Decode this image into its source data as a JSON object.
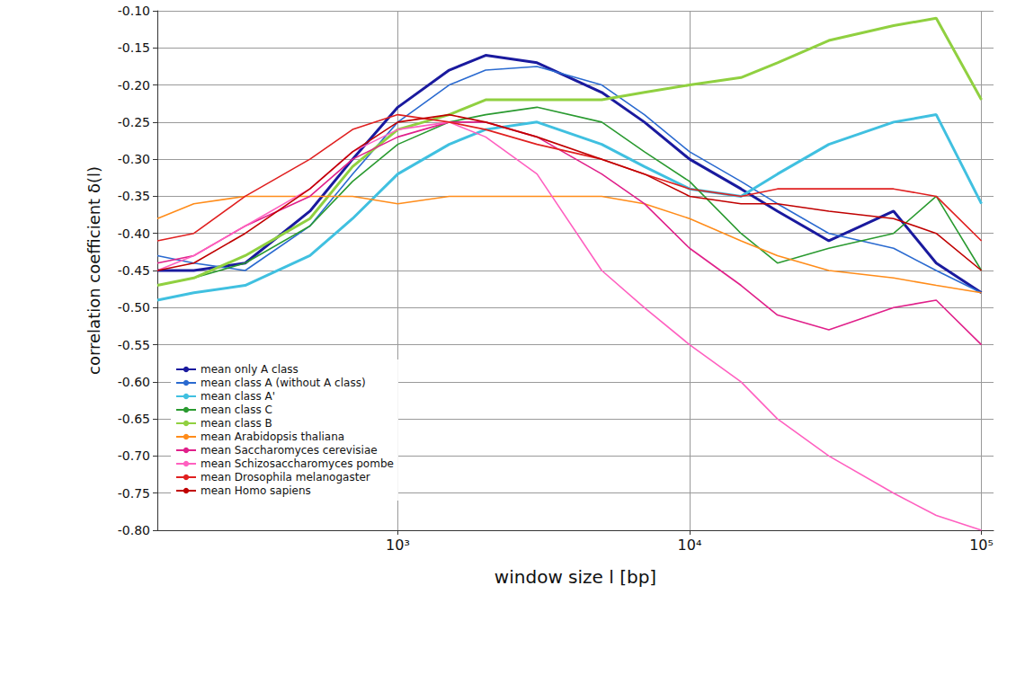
{
  "chart_data": {
    "type": "line",
    "x_label": "window size l [bp]",
    "y_label": "correlation coefficient δ(l)",
    "log": "x",
    "grid": true,
    "legend": "lower left",
    "xlim": [
      150,
      110000
    ],
    "xticks": [
      {
        "value": 1000,
        "label": "10³"
      },
      {
        "value": 10000,
        "label": "10⁴"
      },
      {
        "value": 100000,
        "label": "10⁵"
      }
    ],
    "ylim": [
      -0.8,
      -0.1
    ],
    "yticks": [
      {
        "value": -0.8,
        "label": "-0.80"
      },
      {
        "value": -0.75,
        "label": "-0.75"
      },
      {
        "value": -0.7,
        "label": "-0.70"
      },
      {
        "value": -0.65,
        "label": "-0.65"
      },
      {
        "value": -0.6,
        "label": "-0.60"
      },
      {
        "value": -0.55,
        "label": "-0.55"
      },
      {
        "value": -0.5,
        "label": "-0.50"
      },
      {
        "value": -0.45,
        "label": "-0.45"
      },
      {
        "value": -0.4,
        "label": "-0.40"
      },
      {
        "value": -0.35,
        "label": "-0.35"
      },
      {
        "value": -0.3,
        "label": "-0.30"
      },
      {
        "value": -0.25,
        "label": "-0.25"
      },
      {
        "value": -0.2,
        "label": "-0.20"
      },
      {
        "value": -0.15,
        "label": "-0.15"
      },
      {
        "value": -0.1,
        "label": "-0.10"
      }
    ],
    "x": [
      150,
      200,
      300,
      500,
      700,
      1000,
      1500,
      2000,
      3000,
      5000,
      7000,
      10000,
      15000,
      20000,
      30000,
      50000,
      70000,
      100000
    ],
    "series": [
      {
        "name": "mean only A class",
        "color": "#1a1a9e",
        "values": [
          -0.45,
          -0.45,
          -0.44,
          -0.37,
          -0.3,
          -0.23,
          -0.18,
          -0.16,
          -0.17,
          -0.21,
          -0.25,
          -0.3,
          -0.34,
          -0.37,
          -0.41,
          -0.37,
          -0.44,
          -0.48
        ]
      },
      {
        "name": "mean class A (without A class)",
        "color": "#2a6ad0",
        "values": [
          -0.43,
          -0.44,
          -0.45,
          -0.39,
          -0.32,
          -0.25,
          -0.2,
          -0.18,
          -0.175,
          -0.2,
          -0.24,
          -0.29,
          -0.33,
          -0.36,
          -0.4,
          -0.42,
          -0.45,
          -0.48
        ]
      },
      {
        "name": "mean class A'",
        "color": "#40c0e0",
        "values": [
          -0.49,
          -0.48,
          -0.47,
          -0.43,
          -0.38,
          -0.32,
          -0.28,
          -0.26,
          -0.25,
          -0.28,
          -0.31,
          -0.34,
          -0.35,
          -0.32,
          -0.28,
          -0.25,
          -0.24,
          -0.36
        ]
      },
      {
        "name": "mean class C",
        "color": "#2a9a30",
        "values": [
          -0.47,
          -0.46,
          -0.44,
          -0.39,
          -0.33,
          -0.28,
          -0.25,
          -0.24,
          -0.23,
          -0.25,
          -0.29,
          -0.33,
          -0.4,
          -0.44,
          -0.42,
          -0.4,
          -0.35,
          -0.45
        ]
      },
      {
        "name": "mean class B",
        "color": "#90d040",
        "values": [
          -0.47,
          -0.46,
          -0.43,
          -0.38,
          -0.31,
          -0.26,
          -0.24,
          -0.22,
          -0.22,
          -0.22,
          -0.21,
          -0.2,
          -0.19,
          -0.17,
          -0.14,
          -0.12,
          -0.11,
          -0.22
        ]
      },
      {
        "name": "mean Arabidopsis thaliana",
        "color": "#ff8c1a",
        "values": [
          -0.38,
          -0.36,
          -0.35,
          -0.35,
          -0.35,
          -0.36,
          -0.35,
          -0.35,
          -0.35,
          -0.35,
          -0.36,
          -0.38,
          -0.41,
          -0.43,
          -0.45,
          -0.46,
          -0.47,
          -0.48
        ]
      },
      {
        "name": "mean Saccharomyces cerevisiae",
        "color": "#e0208a",
        "values": [
          -0.44,
          -0.43,
          -0.39,
          -0.35,
          -0.3,
          -0.27,
          -0.25,
          -0.25,
          -0.27,
          -0.32,
          -0.36,
          -0.42,
          -0.47,
          -0.51,
          -0.53,
          -0.5,
          -0.49,
          -0.55
        ]
      },
      {
        "name": "mean Schizosaccharomyces pombe",
        "color": "#ff60c0",
        "values": [
          -0.45,
          -0.43,
          -0.39,
          -0.34,
          -0.29,
          -0.26,
          -0.25,
          -0.27,
          -0.32,
          -0.45,
          -0.5,
          -0.55,
          -0.6,
          -0.65,
          -0.7,
          -0.75,
          -0.78,
          -0.8
        ]
      },
      {
        "name": "mean Drosophila melanogaster",
        "color": "#e02020",
        "values": [
          -0.41,
          -0.4,
          -0.35,
          -0.3,
          -0.26,
          -0.24,
          -0.25,
          -0.26,
          -0.28,
          -0.3,
          -0.32,
          -0.34,
          -0.35,
          -0.34,
          -0.34,
          -0.34,
          -0.35,
          -0.41
        ]
      },
      {
        "name": "mean Homo sapiens",
        "color": "#c00000",
        "values": [
          -0.45,
          -0.44,
          -0.4,
          -0.34,
          -0.29,
          -0.25,
          -0.24,
          -0.25,
          -0.27,
          -0.3,
          -0.32,
          -0.35,
          -0.36,
          -0.36,
          -0.37,
          -0.38,
          -0.4,
          -0.45
        ]
      }
    ]
  }
}
